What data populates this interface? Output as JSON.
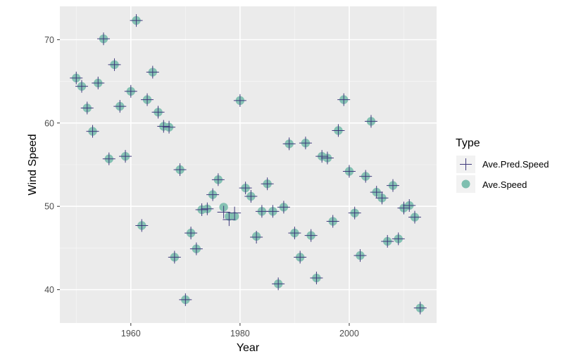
{
  "chart_data": {
    "type": "scatter",
    "xlabel": "Year",
    "ylabel": "Wind Speed",
    "xlim": [
      1947,
      2016
    ],
    "ylim": [
      36,
      74
    ],
    "x_ticks": [
      1960,
      1980,
      2000
    ],
    "y_ticks": [
      40,
      50,
      60,
      70
    ],
    "grid": true,
    "legend": {
      "title": "Type",
      "placement": "right"
    },
    "series": [
      {
        "name": "Ave.Pred.Speed",
        "shape": "plus",
        "color": "#3f3a7c"
      },
      {
        "name": "Ave.Speed",
        "shape": "circle",
        "color": "#7fbfb0"
      }
    ],
    "x": [
      1950,
      1951,
      1952,
      1953,
      1954,
      1955,
      1956,
      1957,
      1958,
      1959,
      1960,
      1961,
      1962,
      1963,
      1964,
      1965,
      1966,
      1967,
      1968,
      1969,
      1970,
      1971,
      1972,
      1973,
      1974,
      1975,
      1976,
      1977,
      1978,
      1979,
      1980,
      1981,
      1982,
      1983,
      1984,
      1985,
      1986,
      1987,
      1988,
      1989,
      1990,
      1991,
      1992,
      1993,
      1994,
      1995,
      1996,
      1997,
      1998,
      1999,
      2000,
      2001,
      2002,
      2003,
      2004,
      2005,
      2006,
      2007,
      2008,
      2009,
      2010,
      2011,
      2012,
      2013
    ],
    "pred": [
      65.4,
      64.4,
      61.8,
      59.0,
      64.8,
      70.1,
      55.7,
      67.0,
      62.0,
      56.0,
      63.8,
      72.3,
      47.7,
      62.8,
      66.1,
      61.3,
      59.6,
      59.5,
      43.9,
      54.4,
      38.8,
      46.8,
      44.9,
      49.6,
      49.7,
      51.4,
      53.2,
      49.3,
      48.4,
      49.2,
      62.7,
      52.2,
      51.2,
      46.3,
      49.4,
      52.7,
      49.4,
      40.7,
      49.9,
      57.5,
      46.8,
      43.9,
      57.6,
      46.5,
      41.4,
      56.0,
      55.8,
      48.2,
      59.1,
      62.8,
      54.2,
      49.2,
      44.1,
      53.6,
      60.2,
      51.7,
      51.0,
      45.8,
      52.5,
      46.1,
      49.8,
      50.1,
      48.7,
      37.8
    ],
    "actual": [
      65.4,
      64.4,
      61.8,
      59.0,
      64.8,
      70.1,
      55.7,
      67.0,
      62.0,
      56.0,
      63.8,
      72.3,
      47.7,
      62.8,
      66.1,
      61.3,
      59.6,
      59.5,
      43.9,
      54.4,
      38.8,
      46.8,
      44.9,
      49.6,
      49.7,
      51.4,
      53.2,
      49.9,
      48.8,
      48.8,
      62.7,
      52.2,
      51.2,
      46.4,
      49.4,
      52.7,
      49.4,
      40.7,
      49.9,
      57.5,
      46.8,
      43.9,
      57.6,
      46.5,
      41.4,
      56.0,
      55.8,
      48.2,
      59.1,
      62.8,
      54.2,
      49.2,
      44.1,
      53.6,
      60.2,
      51.7,
      51.0,
      45.8,
      52.5,
      46.1,
      49.8,
      50.1,
      48.7,
      37.8
    ]
  }
}
